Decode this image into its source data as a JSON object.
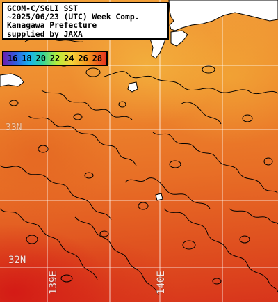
{
  "header": {
    "lines": [
      "GCOM-C/SGLI SST",
      "~2025/06/23 (UTC) Week Comp.",
      "Kanagawa Prefecture",
      "supplied by JAXA"
    ]
  },
  "legend": {
    "ticks": [
      "16",
      "18",
      "20",
      "22",
      "24",
      "26",
      "28"
    ]
  },
  "grid_labels": {
    "lat_north": "33N",
    "lat_south": "32N",
    "lon_west": "139E",
    "lon_east": "140E"
  },
  "colors": {
    "land": "#ffffff",
    "contour": "#000000",
    "grid": "#ffffff",
    "sst_warm": "#d8351b",
    "sst_cool": "#f6c548"
  }
}
